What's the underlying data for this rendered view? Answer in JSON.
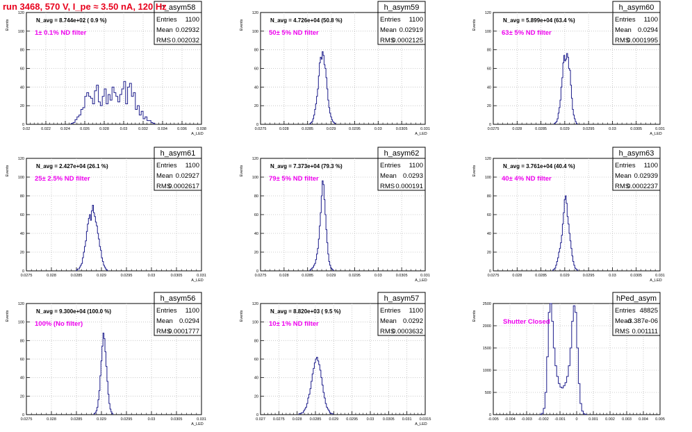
{
  "page_title": "run 3468,   570 V, I_pe ≈ 3.50 nA, 120 Hz",
  "colors": {
    "hist_line": "#1b1b8a",
    "note_text": "#ee00ee",
    "title_text": "#e8001c",
    "grid": "#bdbdbd",
    "axis": "#000000"
  },
  "chart_data": [
    {
      "type": "bar",
      "name": "h_asym58",
      "navg": "N_avg = 8.744e+02 ( 0.9 %)",
      "note": "1± 0.1% ND filter",
      "stats": {
        "entries": "1100",
        "mean": "0.02932",
        "rms": "0.002032"
      },
      "ylabel": "Events",
      "xlabel": "A_LED",
      "xlim": [
        0.02,
        0.038
      ],
      "ylim": [
        0,
        120
      ],
      "xticks": [
        "0.02",
        "0.022",
        "0.024",
        "0.026",
        "0.028",
        "0.03",
        "0.032",
        "0.034",
        "0.036",
        "0.038"
      ],
      "yticks": [
        "0",
        "20",
        "40",
        "60",
        "80",
        "100",
        "120"
      ],
      "bins": {
        "start": 0.0246,
        "width": 0.0002,
        "values": [
          1,
          2,
          5,
          8,
          10,
          16,
          18,
          30,
          34,
          30,
          28,
          22,
          36,
          42,
          24,
          20,
          30,
          38,
          22,
          32,
          26,
          40,
          34,
          30,
          24,
          32,
          38,
          46,
          22,
          40,
          44,
          30,
          34,
          16,
          20,
          10,
          14,
          6,
          8,
          4,
          4,
          2,
          1
        ]
      }
    },
    {
      "type": "bar",
      "name": "h_asym59",
      "navg": "N_avg = 4.726e+04 (50.8 %)",
      "note": "50± 5% ND filter",
      "stats": {
        "entries": "1100",
        "mean": "0.02919",
        "rms": "0.0002125"
      },
      "ylabel": "Events",
      "xlabel": "A_LED",
      "xlim": [
        0.0275,
        0.031
      ],
      "ylim": [
        0,
        120
      ],
      "xticks": [
        "0.0275",
        "0.028",
        "0.0285",
        "0.029",
        "0.0295",
        "0.03",
        "0.0305",
        "0.031"
      ],
      "yticks": [
        "0",
        "20",
        "40",
        "60",
        "80",
        "100",
        "120"
      ],
      "bins": {
        "start": 0.02855,
        "width": 2e-05,
        "values": [
          1,
          2,
          3,
          6,
          10,
          16,
          22,
          30,
          38,
          52,
          66,
          72,
          70,
          78,
          74,
          64,
          60,
          50,
          38,
          26,
          18,
          12,
          8,
          5,
          3,
          2,
          1
        ]
      }
    },
    {
      "type": "bar",
      "name": "h_asym60",
      "navg": "N_avg = 5.899e+04 (63.4 %)",
      "note": "63± 5% ND filter",
      "stats": {
        "entries": "1100",
        "mean": "0.0294",
        "rms": "0.0001995"
      },
      "ylabel": "Events",
      "xlabel": "A_LED",
      "xlim": [
        0.0275,
        0.031
      ],
      "ylim": [
        0,
        120
      ],
      "xticks": [
        "0.0275",
        "0.028",
        "0.0285",
        "0.029",
        "0.0295",
        "0.03",
        "0.0305",
        "0.031"
      ],
      "yticks": [
        "0",
        "20",
        "40",
        "60",
        "80",
        "100",
        "120"
      ],
      "bins": {
        "start": 0.02878,
        "width": 2e-05,
        "values": [
          1,
          2,
          3,
          6,
          12,
          18,
          26,
          40,
          50,
          66,
          74,
          68,
          70,
          76,
          72,
          60,
          58,
          42,
          28,
          16,
          10,
          6,
          3,
          1
        ]
      }
    },
    {
      "type": "bar",
      "name": "h_asym61",
      "navg": "N_avg = 2.427e+04 (26.1 %)",
      "note": "25± 2.5% ND filter",
      "stats": {
        "entries": "1100",
        "mean": "0.02927",
        "rms": "0.0002617"
      },
      "ylabel": "Events",
      "xlabel": "A_LED",
      "xlim": [
        0.0275,
        0.031
      ],
      "ylim": [
        0,
        120
      ],
      "xticks": [
        "0.0275",
        "0.028",
        "0.0285",
        "0.029",
        "0.0295",
        "0.03",
        "0.0305",
        "0.031"
      ],
      "yticks": [
        "0",
        "20",
        "40",
        "60",
        "80",
        "100",
        "120"
      ],
      "bins": {
        "start": 0.0285,
        "width": 2e-05,
        "values": [
          1,
          2,
          2,
          4,
          6,
          8,
          14,
          20,
          26,
          32,
          42,
          50,
          56,
          60,
          54,
          64,
          70,
          62,
          58,
          52,
          48,
          40,
          34,
          26,
          22,
          14,
          10,
          6,
          4,
          2,
          1
        ]
      }
    },
    {
      "type": "bar",
      "name": "h_asym62",
      "navg": "N_avg = 7.373e+04 (79.3 %)",
      "note": "79± 5% ND filter",
      "stats": {
        "entries": "1100",
        "mean": "0.0293",
        "rms": "0.000191"
      },
      "ylabel": "Events",
      "xlabel": "A_LED",
      "xlim": [
        0.0275,
        0.031
      ],
      "ylim": [
        0,
        120
      ],
      "xticks": [
        "0.0275",
        "0.028",
        "0.0285",
        "0.029",
        "0.0295",
        "0.03",
        "0.0305",
        "0.031"
      ],
      "yticks": [
        "0",
        "20",
        "40",
        "60",
        "80",
        "100",
        "120"
      ],
      "bins": {
        "start": 0.02855,
        "width": 2e-05,
        "values": [
          1,
          2,
          3,
          4,
          6,
          8,
          12,
          18,
          24,
          34,
          48,
          62,
          80,
          96,
          92,
          76,
          60,
          44,
          30,
          18,
          10,
          6,
          3,
          2,
          1
        ]
      }
    },
    {
      "type": "bar",
      "name": "h_asym63",
      "navg": "N_avg = 3.761e+04 (40.4 %)",
      "note": "40± 4% ND filter",
      "stats": {
        "entries": "1100",
        "mean": "0.02939",
        "rms": "0.0002237"
      },
      "ylabel": "Events",
      "xlabel": "A_LED",
      "xlim": [
        0.0275,
        0.031
      ],
      "ylim": [
        0,
        120
      ],
      "xticks": [
        "0.0275",
        "0.028",
        "0.0285",
        "0.029",
        "0.0295",
        "0.03",
        "0.0305",
        "0.031"
      ],
      "yticks": [
        "0",
        "20",
        "40",
        "60",
        "80",
        "100",
        "120"
      ],
      "bins": {
        "start": 0.02875,
        "width": 2e-05,
        "values": [
          1,
          2,
          3,
          6,
          10,
          14,
          20,
          24,
          30,
          38,
          50,
          62,
          76,
          80,
          72,
          58,
          50,
          40,
          32,
          24,
          16,
          10,
          6,
          3,
          2,
          1
        ]
      }
    },
    {
      "type": "bar",
      "name": "h_asym56",
      "navg": "N_avg = 9.300e+04 (100.0 %)",
      "note": "100% (No filter)",
      "stats": {
        "entries": "1100",
        "mean": "0.0294",
        "rms": "0.0001777"
      },
      "ylabel": "Events",
      "xlabel": "A_LED",
      "xlim": [
        0.0275,
        0.031
      ],
      "ylim": [
        0,
        120
      ],
      "xticks": [
        "0.0275",
        "0.028",
        "0.0285",
        "0.029",
        "0.0295",
        "0.03",
        "0.0305",
        "0.031"
      ],
      "yticks": [
        "0",
        "20",
        "40",
        "60",
        "80",
        "100",
        "120"
      ],
      "bins": {
        "start": 0.02885,
        "width": 2e-05,
        "values": [
          1,
          2,
          4,
          8,
          16,
          26,
          42,
          58,
          74,
          88,
          82,
          68,
          52,
          36,
          22,
          12,
          6,
          3,
          1
        ]
      }
    },
    {
      "type": "bar",
      "name": "h_asym57",
      "navg": "N_avg = 8.820e+03 ( 9.5 %)",
      "note": "10± 1% ND filter",
      "stats": {
        "entries": "1100",
        "mean": "0.0292",
        "rms": "0.0003632"
      },
      "ylabel": "Events",
      "xlabel": "A_LED",
      "xlim": [
        0.027,
        0.0315
      ],
      "ylim": [
        0,
        120
      ],
      "xticks": [
        "0.027",
        "0.0275",
        "0.028",
        "0.0285",
        "0.029",
        "0.0295",
        "0.03",
        "0.0305",
        "0.031",
        "0.0315"
      ],
      "yticks": [
        "0",
        "20",
        "40",
        "60",
        "80",
        "100",
        "120"
      ],
      "bins": {
        "start": 0.02805,
        "width": 3e-05,
        "values": [
          1,
          1,
          2,
          2,
          4,
          6,
          8,
          12,
          18,
          22,
          28,
          36,
          44,
          50,
          56,
          60,
          62,
          58,
          54,
          48,
          40,
          32,
          24,
          18,
          12,
          8,
          6,
          4,
          2,
          1,
          1
        ]
      }
    },
    {
      "type": "bar",
      "name": "hPed_asym",
      "navg": "",
      "note": "Shutter Closed",
      "stats": {
        "entries": "48825",
        "mean": "-3.387e-06",
        "rms": "0.001111"
      },
      "ylabel": "Events",
      "xlabel": "",
      "xlim": [
        -0.005,
        0.005
      ],
      "ylim": [
        0,
        2500
      ],
      "xticks": [
        "-0.005",
        "-0.004",
        "-0.003",
        "-0.002",
        "-0.001",
        "0",
        "0.001",
        "0.002",
        "0.003",
        "0.004",
        "0.005"
      ],
      "yticks": [
        "0",
        "500",
        "1000",
        "1500",
        "2000",
        "2500"
      ],
      "bins": {
        "start": -0.0022,
        "width": 0.0001,
        "values": [
          5,
          30,
          140,
          500,
          1300,
          2300,
          2500,
          2100,
          1500,
          1100,
          860,
          700,
          620,
          600,
          650,
          720,
          860,
          1100,
          1500,
          2100,
          2450,
          2300,
          1500,
          700,
          250,
          80,
          20,
          5
        ]
      }
    }
  ]
}
